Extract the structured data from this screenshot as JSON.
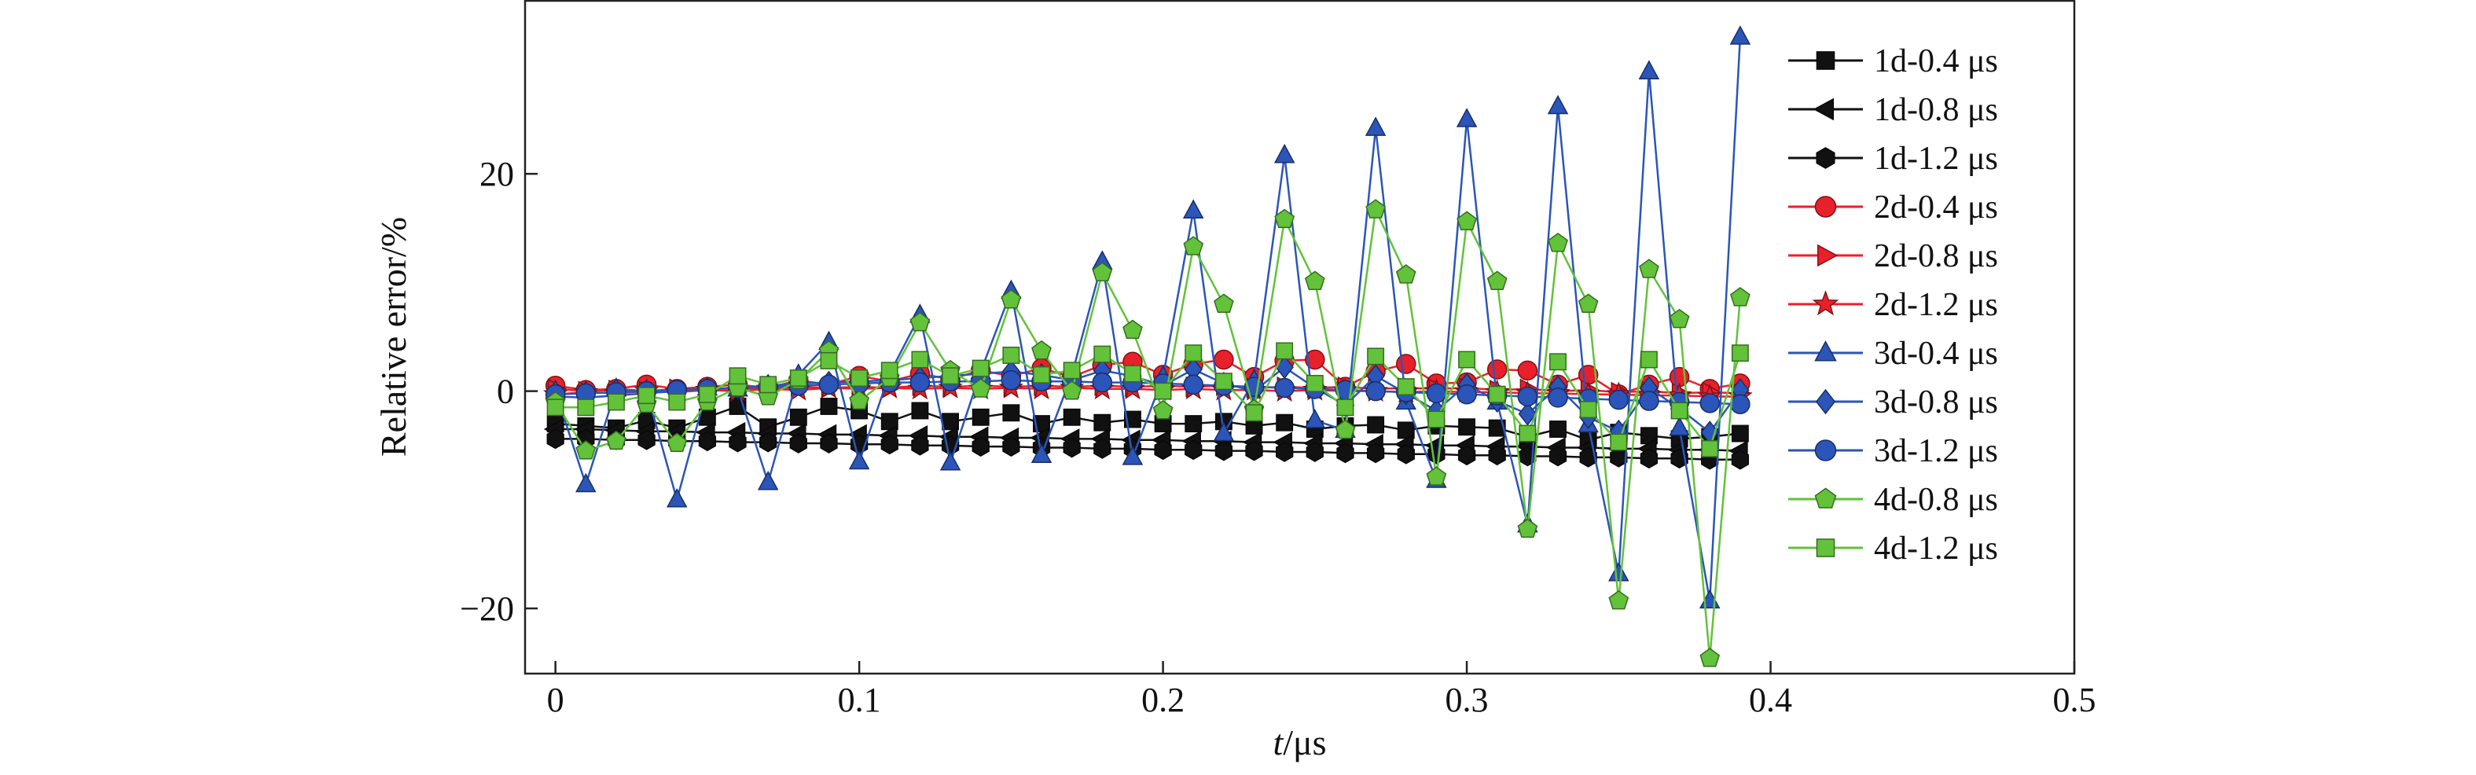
{
  "chart_data": {
    "type": "line",
    "xlabel_italic": "t",
    "xlabel_rest": "/μs",
    "ylabel": "Relative error/%",
    "xlim": [
      -0.01,
      0.5
    ],
    "ylim": [
      -26,
      36
    ],
    "x_ticks": [
      0,
      0.1,
      0.2,
      0.3,
      0.4,
      0.5
    ],
    "x_tick_labels": [
      "0",
      "0.1",
      "0.2",
      "0.3",
      "0.4",
      "0.5"
    ],
    "y_ticks": [
      -20,
      0,
      20
    ],
    "y_tick_labels": [
      "−20",
      "0",
      "20"
    ],
    "legend_position": "top-right",
    "grid": false,
    "x": [
      0,
      0.01,
      0.02,
      0.03,
      0.04,
      0.05,
      0.06,
      0.07,
      0.08,
      0.09,
      0.1,
      0.11,
      0.12,
      0.13,
      0.14,
      0.15,
      0.16,
      0.17,
      0.18,
      0.19,
      0.2,
      0.21,
      0.22,
      0.23,
      0.24,
      0.25,
      0.26,
      0.27,
      0.28,
      0.29,
      0.3,
      0.31,
      0.32,
      0.33,
      0.34,
      0.35,
      0.36,
      0.37,
      0.38,
      0.39
    ],
    "series": [
      {
        "name": "1d-0.4 μs",
        "color": "#111111",
        "marker": "square",
        "values": [
          -3.0,
          -3.2,
          -3.4,
          -2.7,
          -3.4,
          -2.4,
          -1.4,
          -3.3,
          -2.4,
          -1.4,
          -1.8,
          -2.8,
          -1.8,
          -2.8,
          -2.4,
          -2.0,
          -3.0,
          -2.4,
          -2.9,
          -2.6,
          -3.0,
          -3.0,
          -2.8,
          -3.2,
          -2.9,
          -3.5,
          -3.2,
          -3.1,
          -3.6,
          -3.2,
          -3.3,
          -3.4,
          -4.2,
          -3.5,
          -4.5,
          -3.8,
          -4.1,
          -4.4,
          -4.2,
          -3.9
        ]
      },
      {
        "name": "1d-0.8 μs",
        "color": "#111111",
        "marker": "tri-left",
        "values": [
          -3.5,
          -3.5,
          -3.6,
          -3.7,
          -3.7,
          -3.8,
          -3.8,
          -3.9,
          -3.9,
          -4.0,
          -4.0,
          -4.1,
          -4.1,
          -4.2,
          -4.2,
          -4.3,
          -4.3,
          -4.4,
          -4.4,
          -4.5,
          -4.5,
          -4.6,
          -4.6,
          -4.7,
          -4.7,
          -4.8,
          -4.8,
          -4.9,
          -4.9,
          -5.0,
          -5.0,
          -5.1,
          -5.1,
          -5.2,
          -5.2,
          -5.3,
          -5.3,
          -5.4,
          -5.4,
          -5.5
        ]
      },
      {
        "name": "1d-1.2 μs",
        "color": "#111111",
        "marker": "hexagon",
        "values": [
          -4.4,
          -4.4,
          -4.5,
          -4.5,
          -4.6,
          -4.6,
          -4.7,
          -4.7,
          -4.8,
          -4.8,
          -4.9,
          -4.9,
          -5.0,
          -5.0,
          -5.1,
          -5.1,
          -5.2,
          -5.2,
          -5.3,
          -5.3,
          -5.4,
          -5.4,
          -5.5,
          -5.5,
          -5.6,
          -5.6,
          -5.7,
          -5.7,
          -5.8,
          -5.8,
          -5.9,
          -5.9,
          -6.0,
          -6.0,
          -6.1,
          -6.1,
          -6.2,
          -6.2,
          -6.3,
          -6.3
        ]
      },
      {
        "name": "2d-0.4 μs",
        "color": "#e8202a",
        "marker": "circle",
        "values": [
          0.5,
          0.1,
          0.2,
          0.6,
          0.2,
          0.4,
          0.6,
          0.3,
          1.0,
          0.6,
          1.4,
          0.9,
          1.6,
          1.1,
          1.9,
          1.4,
          2.1,
          1.3,
          2.4,
          2.7,
          1.5,
          2.5,
          2.9,
          1.3,
          2.8,
          2.9,
          0.4,
          1.8,
          2.5,
          0.7,
          0.8,
          2.0,
          1.9,
          0.6,
          1.5,
          -0.3,
          0.6,
          1.3,
          0.2,
          0.7
        ]
      },
      {
        "name": "2d-0.8 μs",
        "color": "#e8202a",
        "marker": "tri-right",
        "values": [
          0.2,
          0.0,
          0.1,
          0.0,
          0.2,
          0.1,
          0.3,
          0.2,
          0.4,
          0.3,
          0.4,
          0.3,
          0.5,
          0.4,
          0.5,
          0.4,
          0.5,
          0.4,
          0.5,
          0.4,
          0.5,
          0.4,
          0.5,
          0.3,
          0.4,
          0.3,
          0.4,
          0.2,
          0.3,
          0.2,
          0.3,
          0.1,
          0.2,
          0.0,
          0.1,
          -0.1,
          0.0,
          -0.2,
          -0.1,
          -0.2
        ]
      },
      {
        "name": "2d-1.2 μs",
        "color": "#e8202a",
        "marker": "star",
        "values": [
          -0.3,
          -0.1,
          -0.2,
          0.0,
          -0.1,
          0.1,
          0.0,
          0.2,
          0.1,
          0.3,
          0.2,
          0.3,
          0.2,
          0.3,
          0.2,
          0.3,
          0.2,
          0.3,
          0.2,
          0.2,
          0.1,
          0.2,
          0.1,
          0.1,
          0.0,
          0.1,
          0.0,
          0.0,
          -0.1,
          0.0,
          -0.1,
          -0.1,
          -0.2,
          -0.2,
          -0.3,
          -0.3,
          -0.4,
          -0.4,
          -0.5,
          -0.5
        ]
      },
      {
        "name": "3d-0.4 μs",
        "color": "#2b55b8",
        "marker": "triangle",
        "values": [
          0.0,
          -8.6,
          0.2,
          0.0,
          -10.0,
          0.3,
          0.2,
          -8.4,
          1.5,
          4.5,
          -6.5,
          1.6,
          7.0,
          -6.6,
          1.8,
          9.2,
          -5.9,
          1.5,
          11.9,
          -6.1,
          1.3,
          16.6,
          -3.9,
          1.0,
          21.7,
          -2.7,
          -3.6,
          24.2,
          -1.0,
          -8.2,
          25.0,
          -1.0,
          -12.3,
          26.2,
          -3.1,
          -16.8,
          29.4,
          -3.4,
          -19.3,
          32.6
        ]
      },
      {
        "name": "3d-0.8 μs",
        "color": "#2b55b8",
        "marker": "diamond",
        "values": [
          -0.5,
          -0.6,
          -0.4,
          -0.2,
          0.0,
          0.2,
          0.3,
          0.5,
          0.7,
          0.8,
          0.9,
          1.0,
          1.2,
          1.4,
          1.6,
          1.8,
          1.5,
          1.0,
          1.9,
          1.4,
          0.5,
          2.0,
          0.7,
          0.0,
          2.2,
          0.3,
          -1.3,
          1.4,
          -0.2,
          -1.8,
          0.6,
          -0.9,
          -2.1,
          0.4,
          -2.4,
          -3.7,
          0.3,
          -1.6,
          -3.8,
          0.1
        ]
      },
      {
        "name": "3d-1.2 μs",
        "color": "#2b55b8",
        "marker": "circle",
        "values": [
          -0.3,
          -0.2,
          -0.1,
          0.0,
          0.1,
          0.2,
          0.3,
          0.4,
          0.5,
          0.6,
          0.7,
          0.8,
          0.8,
          0.9,
          0.9,
          1.0,
          0.9,
          0.9,
          0.8,
          0.8,
          0.7,
          0.6,
          0.5,
          0.4,
          0.3,
          0.2,
          0.1,
          0.0,
          -0.1,
          -0.2,
          -0.3,
          -0.4,
          -0.5,
          -0.6,
          -0.7,
          -0.8,
          -0.9,
          -1.0,
          -1.1,
          -1.2
        ]
      },
      {
        "name": "4d-0.8 μs",
        "color": "#62c23a",
        "marker": "pentagon",
        "values": [
          -1.0,
          -5.5,
          -4.6,
          -1.2,
          -4.8,
          -1.0,
          0.3,
          -0.5,
          1.0,
          3.7,
          -0.9,
          1.2,
          6.3,
          1.9,
          0.2,
          8.4,
          3.7,
          0.0,
          10.9,
          5.6,
          -1.8,
          13.3,
          8.0,
          -1.7,
          15.8,
          10.1,
          -3.6,
          16.7,
          10.7,
          -7.9,
          15.6,
          10.1,
          -12.7,
          13.6,
          8.0,
          -19.3,
          11.2,
          6.6,
          -24.6,
          8.6
        ]
      },
      {
        "name": "4d-1.2 μs",
        "color": "#62c23a",
        "marker": "square",
        "values": [
          -1.5,
          -1.5,
          -1.0,
          -0.4,
          -1.0,
          -0.3,
          1.4,
          0.6,
          1.2,
          2.8,
          1.2,
          1.9,
          2.9,
          1.4,
          2.1,
          3.3,
          1.5,
          1.9,
          3.4,
          1.6,
          0.0,
          3.5,
          0.9,
          -2.0,
          3.7,
          0.7,
          -1.5,
          3.2,
          0.4,
          -2.6,
          2.9,
          -0.3,
          -3.9,
          2.7,
          -1.7,
          -4.7,
          2.9,
          -1.8,
          -5.3,
          3.5
        ]
      }
    ]
  }
}
